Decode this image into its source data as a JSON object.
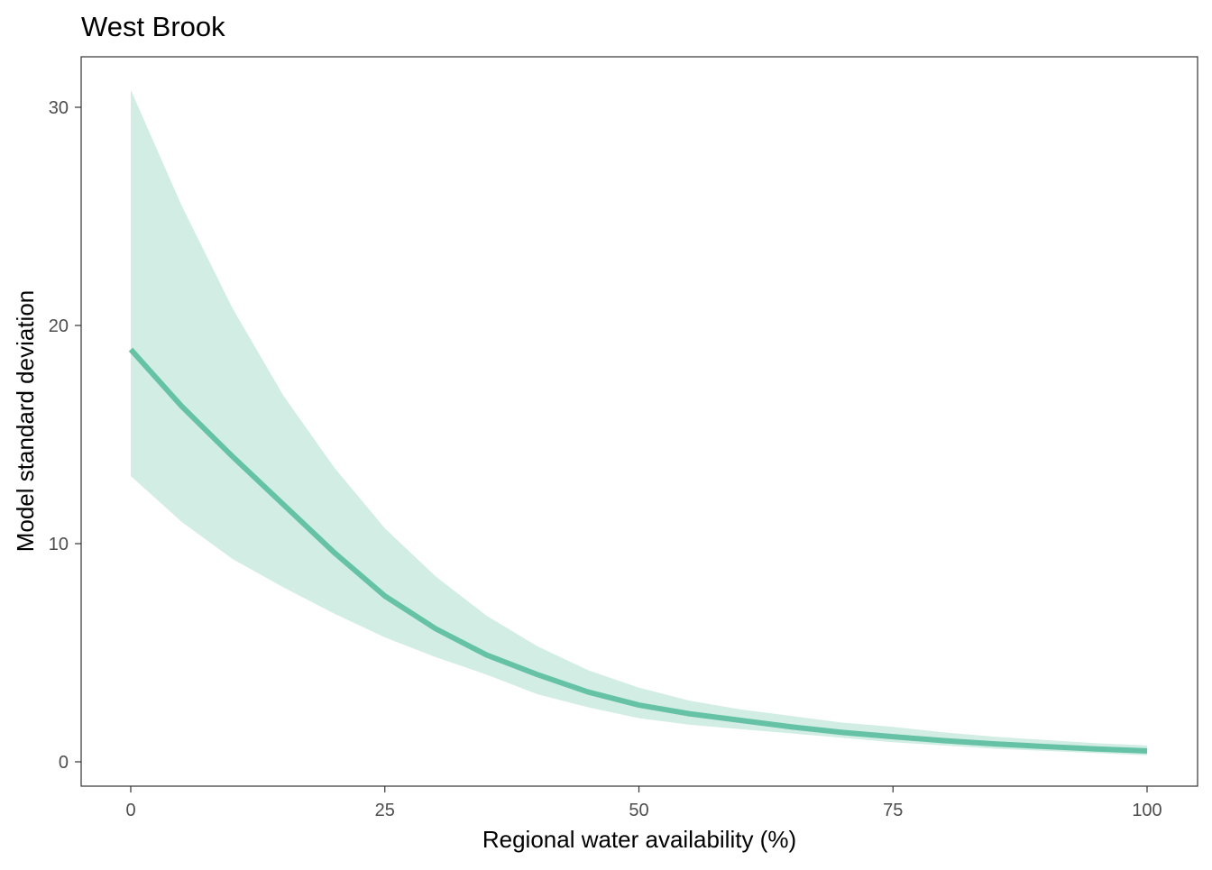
{
  "chart_data": {
    "type": "line",
    "title": "West Brook",
    "xlabel": "Regional water availability (%)",
    "ylabel": "Model standard deviation",
    "xlim": [
      -5,
      105
    ],
    "ylim": [
      -1.2,
      32.3
    ],
    "xticks": [
      0,
      25,
      50,
      75,
      100
    ],
    "xtick_labels": [
      "0",
      "25",
      "50",
      "75",
      "100"
    ],
    "yticks": [
      0,
      10,
      20,
      30
    ],
    "ytick_labels": [
      "0",
      "10",
      "20",
      "30"
    ],
    "grid": false,
    "x": [
      0,
      5,
      10,
      15,
      20,
      25,
      30,
      35,
      40,
      45,
      50,
      55,
      60,
      65,
      70,
      75,
      80,
      85,
      90,
      95,
      100
    ],
    "series": [
      {
        "name": "mean",
        "values": [
          18.9,
          16.3,
          14.0,
          11.8,
          9.6,
          7.6,
          6.1,
          4.9,
          4.0,
          3.2,
          2.6,
          2.2,
          1.9,
          1.6,
          1.35,
          1.15,
          0.97,
          0.82,
          0.7,
          0.59,
          0.5
        ]
      },
      {
        "name": "upper",
        "values": [
          30.8,
          25.5,
          20.8,
          16.8,
          13.5,
          10.7,
          8.5,
          6.7,
          5.3,
          4.2,
          3.4,
          2.8,
          2.4,
          2.1,
          1.8,
          1.6,
          1.35,
          1.15,
          1.0,
          0.85,
          0.75
        ]
      },
      {
        "name": "lower",
        "values": [
          13.1,
          11.0,
          9.3,
          8.0,
          6.8,
          5.7,
          4.8,
          4.0,
          3.1,
          2.5,
          2.0,
          1.7,
          1.5,
          1.3,
          1.1,
          0.9,
          0.75,
          0.6,
          0.5,
          0.4,
          0.3
        ]
      }
    ],
    "colors": {
      "line": "#66c2a5",
      "ribbon": "#d2ede4",
      "tick": "#4d4d4d",
      "text": "#000000"
    }
  }
}
